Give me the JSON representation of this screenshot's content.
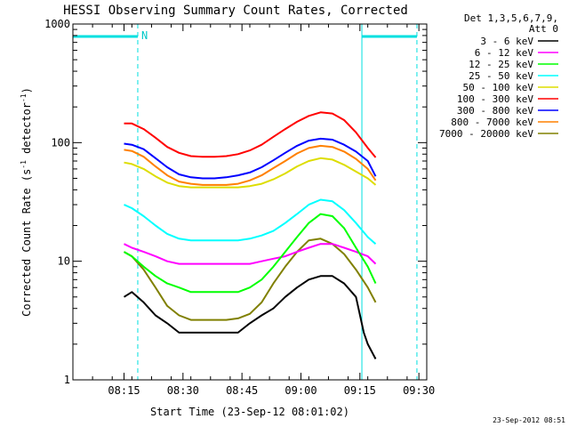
{
  "chart_data": {
    "type": "line",
    "title": "HESSI Observing Summary Count Rates, Corrected",
    "xlabel": "Start Time (23-Sep-12 08:01:02)",
    "ylabel_main": "Corrected Count Rate (s",
    "ylabel_sup1": "-1",
    "ylabel_mid": " detector",
    "ylabel_sup2": "-1",
    "ylabel_end": ")",
    "yscale": "log",
    "ylim": [
      1,
      1000
    ],
    "xlim": [
      1.0,
      91.0
    ],
    "grid": false,
    "legend_placement": "right",
    "legend_header_1": "Det 1,3,5,6,7,9,",
    "legend_header_2": "Att 0",
    "x_ticks": [
      {
        "x": 14,
        "label": "08:15"
      },
      {
        "x": 29,
        "label": "08:30"
      },
      {
        "x": 44,
        "label": "08:45"
      },
      {
        "x": 59,
        "label": "09:00"
      },
      {
        "x": 74,
        "label": "09:15"
      },
      {
        "x": 89,
        "label": "09:30"
      }
    ],
    "y_ticks": [
      {
        "y": 1,
        "label": "1"
      },
      {
        "y": 10,
        "label": "10"
      },
      {
        "y": 100,
        "label": "100"
      },
      {
        "y": 1000,
        "label": "1000"
      }
    ],
    "series": [
      {
        "name": "3 - 6 keV",
        "color": "#000000",
        "x": [
          14,
          16,
          19,
          22,
          25,
          28,
          31,
          34,
          37,
          40,
          43,
          46,
          49,
          52,
          55,
          58,
          61,
          64,
          67,
          70,
          73,
          75,
          76,
          78
        ],
        "y": [
          5,
          5.5,
          4.5,
          3.5,
          3,
          2.5,
          2.5,
          2.5,
          2.5,
          2.5,
          2.5,
          3,
          3.5,
          4,
          5,
          6,
          7,
          7.5,
          7.5,
          6.5,
          5,
          2.5,
          2,
          1.5
        ]
      },
      {
        "name": "6 - 12 keV",
        "color": "#ff00ff",
        "x": [
          14,
          16,
          19,
          22,
          25,
          28,
          31,
          34,
          37,
          40,
          43,
          46,
          49,
          52,
          55,
          58,
          61,
          64,
          67,
          70,
          73,
          76,
          78
        ],
        "y": [
          14,
          13,
          12,
          11,
          10,
          9.5,
          9.5,
          9.5,
          9.5,
          9.5,
          9.5,
          9.5,
          10,
          10.5,
          11,
          12,
          13,
          14,
          14,
          13,
          12,
          11,
          9.5
        ]
      },
      {
        "name": "12 - 25 keV",
        "color": "#00ff00",
        "x": [
          14,
          16,
          19,
          22,
          25,
          28,
          31,
          34,
          37,
          40,
          43,
          46,
          49,
          52,
          55,
          58,
          61,
          64,
          67,
          70,
          73,
          76,
          78
        ],
        "y": [
          12,
          11,
          9,
          7.5,
          6.5,
          6,
          5.5,
          5.5,
          5.5,
          5.5,
          5.5,
          6,
          7,
          9,
          12,
          16,
          21,
          25,
          24,
          19,
          13,
          9,
          6.5
        ]
      },
      {
        "name": "25 - 50 keV",
        "color": "#00ffff",
        "x": [
          14,
          16,
          19,
          22,
          25,
          28,
          31,
          34,
          37,
          40,
          43,
          46,
          49,
          52,
          55,
          58,
          61,
          64,
          67,
          70,
          73,
          76,
          78
        ],
        "y": [
          30,
          28,
          24,
          20,
          17,
          15.5,
          15,
          15,
          15,
          15,
          15,
          15.5,
          16.5,
          18,
          21,
          25,
          30,
          33,
          32,
          27,
          21,
          16,
          14
        ]
      },
      {
        "name": "50 - 100 keV",
        "color": "#dddd00",
        "x": [
          14,
          16,
          19,
          22,
          25,
          28,
          31,
          34,
          37,
          40,
          43,
          46,
          49,
          52,
          55,
          58,
          61,
          64,
          67,
          70,
          73,
          76,
          78
        ],
        "y": [
          68,
          66,
          60,
          52,
          46,
          43,
          42,
          42,
          42,
          42,
          42,
          43,
          45,
          49,
          55,
          63,
          70,
          74,
          72,
          65,
          57,
          50,
          44
        ]
      },
      {
        "name": "100 - 300 keV",
        "color": "#ff0000",
        "x": [
          14,
          16,
          19,
          22,
          25,
          28,
          31,
          34,
          37,
          40,
          43,
          46,
          49,
          52,
          55,
          58,
          61,
          64,
          67,
          70,
          73,
          76,
          78
        ],
        "y": [
          145,
          145,
          130,
          110,
          92,
          82,
          77,
          76,
          76,
          77,
          80,
          86,
          96,
          112,
          130,
          150,
          168,
          180,
          176,
          155,
          122,
          90,
          75
        ]
      },
      {
        "name": "300 - 800 keV",
        "color": "#0000ff",
        "x": [
          14,
          16,
          19,
          22,
          25,
          28,
          31,
          34,
          37,
          40,
          43,
          46,
          49,
          52,
          55,
          58,
          61,
          64,
          67,
          70,
          73,
          76,
          78
        ],
        "y": [
          98,
          96,
          88,
          74,
          62,
          54,
          51,
          50,
          50,
          51,
          53,
          56,
          62,
          71,
          82,
          94,
          104,
          108,
          106,
          96,
          84,
          70,
          52
        ]
      },
      {
        "name": "800 - 7000 keV",
        "color": "#ff8000",
        "x": [
          14,
          16,
          19,
          22,
          25,
          28,
          31,
          34,
          37,
          40,
          43,
          46,
          49,
          52,
          55,
          58,
          61,
          64,
          67,
          70,
          73,
          76,
          78
        ],
        "y": [
          87,
          85,
          76,
          63,
          53,
          47,
          45,
          44,
          44,
          44,
          45,
          48,
          53,
          61,
          70,
          81,
          90,
          94,
          92,
          84,
          73,
          60,
          48
        ]
      },
      {
        "name": "7000 - 20000 keV",
        "color": "#808000",
        "x": [
          14,
          16,
          19,
          22,
          25,
          28,
          31,
          34,
          37,
          40,
          43,
          46,
          49,
          52,
          55,
          58,
          61,
          64,
          67,
          70,
          73,
          76,
          78
        ],
        "y": [
          12,
          11,
          8.5,
          6,
          4.2,
          3.5,
          3.2,
          3.2,
          3.2,
          3.2,
          3.3,
          3.6,
          4.5,
          6.5,
          9,
          12,
          15,
          15.5,
          14,
          11.5,
          8.5,
          6,
          4.5
        ]
      }
    ],
    "night_bar_label": "N",
    "night_bars": [
      {
        "x_start": 1.0,
        "x_end": 17.5
      },
      {
        "x_start": 74.5,
        "x_end": 88.5
      }
    ],
    "vlines_solid": [
      1.0,
      74.5
    ],
    "vlines_dashed": [
      17.5,
      88.5
    ],
    "footer_text": "23-Sep-2012 08:51"
  }
}
